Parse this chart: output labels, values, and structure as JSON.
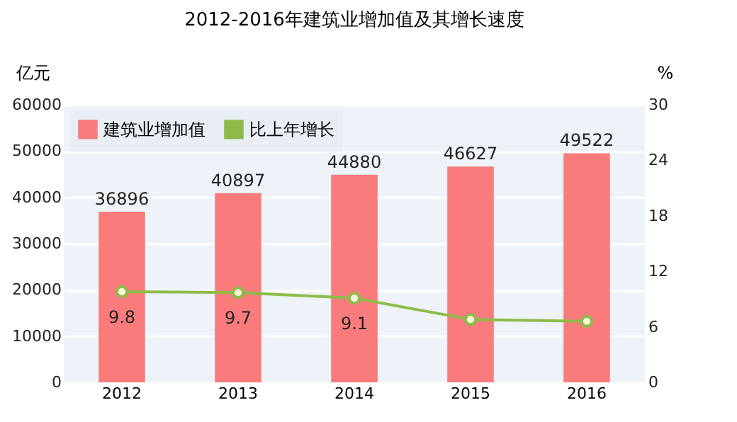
{
  "chart_data": {
    "type": "bar",
    "title": "2012-2016年建筑业增加值及其增长速度",
    "categories": [
      "2012",
      "2013",
      "2014",
      "2015",
      "2016"
    ],
    "ylabel": "亿元",
    "y2label": "%",
    "series": [
      {
        "name": "建筑业增加值",
        "color": "#f97b7b",
        "values": [
          36896,
          40897,
          44880,
          46627,
          49522
        ]
      },
      {
        "name": "比上年增长",
        "type": "line",
        "axis": "y2",
        "color": "#8dbb4a",
        "marker": "circle",
        "values": [
          9.8,
          9.7,
          9.1,
          6.8,
          6.6
        ],
        "value_labels": [
          "9.8",
          "9.7",
          "9.1",
          null,
          null
        ]
      }
    ],
    "data_labels": true,
    "ylim": [
      0,
      60000
    ],
    "yticks": [
      0,
      10000,
      20000,
      30000,
      40000,
      50000,
      60000
    ],
    "y2lim": [
      0,
      30
    ],
    "y2ticks": [
      0,
      6,
      12,
      18,
      24,
      30
    ],
    "grid": "y",
    "legend": "top left"
  }
}
